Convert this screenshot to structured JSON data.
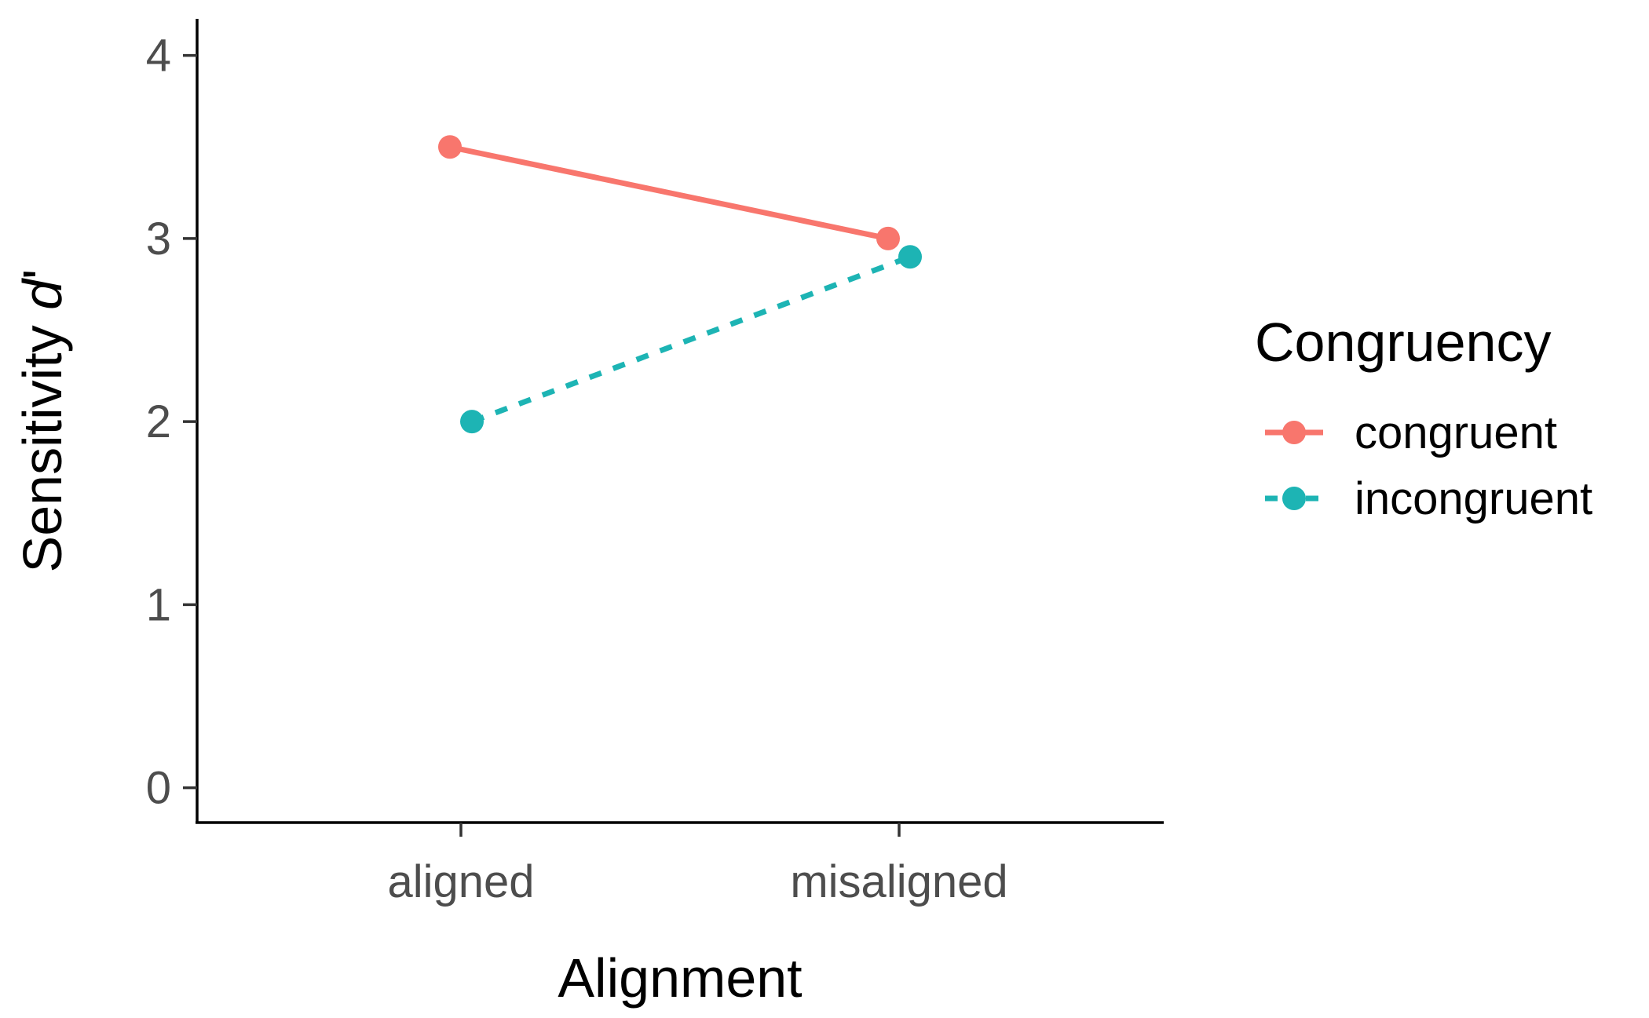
{
  "chart_data": {
    "type": "line",
    "xlabel": "Alignment",
    "ylabel_main": "Sensitivity ",
    "ylabel_symbol": "d",
    "ylabel_prime": "'",
    "categories": [
      "aligned",
      "misaligned"
    ],
    "yticks": [
      "0",
      "1",
      "2",
      "3",
      "4"
    ],
    "ylim": [
      -0.19,
      4.2
    ],
    "grid": false,
    "legend": {
      "title": "Congruency",
      "position": "right"
    },
    "series": [
      {
        "name": "congruent",
        "values": [
          3.5,
          3.0
        ],
        "color": "#F8766D",
        "line_style": "solid"
      },
      {
        "name": "incongruent",
        "values": [
          2.0,
          2.9
        ],
        "color": "#1DB4B4",
        "line_style": "dashed"
      }
    ]
  }
}
